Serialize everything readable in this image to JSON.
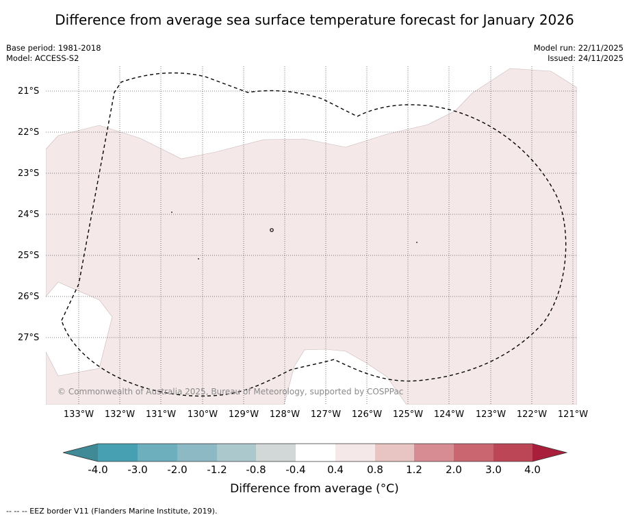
{
  "title": "Difference from average sea surface temperature forecast for January 2026",
  "meta": {
    "base_period": "Base period: 1981-2018",
    "model": "Model: ACCESS-S2",
    "model_run": "Model run: 22/11/2025",
    "issued": "Issued: 24/11/2025"
  },
  "map": {
    "lat_labels": [
      "21°S",
      "22°S",
      "23°S",
      "24°S",
      "25°S",
      "26°S",
      "27°S"
    ],
    "lon_labels": [
      "133°W",
      "132°W",
      "131°W",
      "130°W",
      "129°W",
      "128°W",
      "127°W",
      "126°W",
      "125°W",
      "124°W",
      "123°W",
      "122°W",
      "121°W"
    ],
    "credit": "© Commonwealth of Australia 2025, Bureau of Meteorology, supported by COSPPac",
    "anomaly_fill_color": "#f4e8e8",
    "anomaly_category": "0.4 to 0.8"
  },
  "colorbar": {
    "ticks": [
      "-4.0",
      "-3.0",
      "-2.0",
      "-1.2",
      "-0.8",
      "-0.4",
      "0.4",
      "0.8",
      "1.2",
      "2.0",
      "3.0",
      "4.0"
    ],
    "colors": [
      "#3f8a96",
      "#47a0b1",
      "#6eafbd",
      "#8db9c5",
      "#abc8cd",
      "#d2d8d8",
      "#ffffff",
      "#f4e8e8",
      "#e8c5c3",
      "#d68c92",
      "#c96670",
      "#bd4656",
      "#a91f3b"
    ],
    "label": "Difference from average (°C)"
  },
  "footnote": "-- -- -- EEZ border V11 (Flanders Marine Institute, 2019)."
}
